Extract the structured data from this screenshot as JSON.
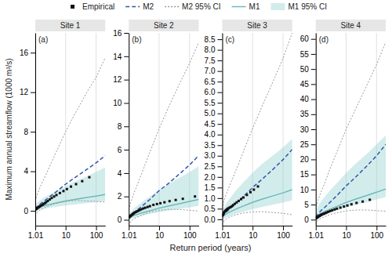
{
  "chart_data": [
    {
      "type": "line",
      "title": "Site 1",
      "annotation": "(a)",
      "xlabel": "Return period (years)",
      "ylabel": "Maximum annual streamflow (1000 m³/s)",
      "log": "x",
      "grid": "x",
      "x": [
        1.01,
        1.05,
        1.1,
        1.2,
        1.5,
        2,
        3,
        5,
        10,
        20,
        50,
        100,
        200
      ],
      "xlim": [
        1.01,
        200
      ],
      "xticks": [
        1.01,
        10,
        100
      ],
      "ylim": [
        -1.5,
        18
      ],
      "yticks": [
        0,
        4,
        8,
        12,
        16
      ],
      "series": [
        {
          "type": "scatter",
          "marker": "square",
          "color": "#111111",
          "x": [
            1.05,
            1.1,
            1.15,
            1.2,
            1.28,
            1.35,
            1.42,
            1.5,
            1.6,
            1.75,
            1.9,
            2.1,
            2.3,
            2.6,
            3.0,
            3.5,
            4.2,
            5.0,
            6.5,
            8.5,
            11.0,
            15.0,
            22.0,
            35.0,
            60.0
          ],
          "values": [
            0.15,
            0.2,
            0.25,
            0.3,
            0.35,
            0.4,
            0.45,
            0.5,
            0.55,
            0.62,
            0.7,
            0.78,
            0.88,
            1.0,
            1.15,
            1.3,
            1.45,
            1.6,
            1.8,
            2.0,
            2.2,
            2.45,
            2.7,
            3.0,
            3.4
          ]
        },
        {
          "type": "line",
          "line_style": "dashed",
          "color": "#3355aa",
          "values": [
            0.2,
            0.27,
            0.34,
            0.46,
            0.72,
            1.0,
            1.42,
            1.95,
            2.7,
            3.35,
            4.2,
            4.85,
            5.6
          ]
        },
        {
          "type": "line",
          "line_style": "dotted",
          "color": "#999999",
          "lower": [
            -0.5,
            -0.38,
            -0.28,
            -0.12,
            0.1,
            0.3,
            0.55,
            0.78,
            0.95,
            1.05,
            1.0,
            0.95,
            0.88
          ],
          "upper": [
            1.0,
            1.2,
            1.4,
            1.75,
            2.5,
            3.3,
            4.5,
            6.0,
            8.0,
            9.8,
            12.0,
            13.5,
            15.5
          ]
        },
        {
          "type": "line",
          "line_style": "solid",
          "color": "#6bbaba",
          "values": [
            0.18,
            0.22,
            0.25,
            0.3,
            0.42,
            0.52,
            0.65,
            0.8,
            1.0,
            1.15,
            1.35,
            1.5,
            1.65
          ]
        },
        {
          "type": "area",
          "color": "#8ecfcf",
          "lower": [
            -0.1,
            -0.05,
            0.0,
            0.05,
            0.12,
            0.2,
            0.3,
            0.42,
            0.55,
            0.65,
            0.78,
            0.88,
            1.0
          ],
          "upper": [
            0.5,
            0.6,
            0.7,
            0.85,
            1.1,
            1.35,
            1.65,
            2.0,
            2.5,
            2.95,
            3.5,
            3.95,
            4.4
          ]
        }
      ]
    },
    {
      "type": "line",
      "title": "Site 2",
      "annotation": "(b)",
      "log": "x",
      "grid": "x",
      "x": [
        1.01,
        1.05,
        1.1,
        1.2,
        1.5,
        2,
        3,
        5,
        10,
        20,
        50,
        100,
        200
      ],
      "xlim": [
        1.01,
        200
      ],
      "xticks": [
        1.01,
        10,
        100
      ],
      "ylim": [
        -0.5,
        16
      ],
      "yticks": [
        0,
        2,
        4,
        6,
        8,
        10,
        12,
        14,
        16
      ],
      "series": [
        {
          "type": "scatter",
          "marker": "square",
          "color": "#111111",
          "x": [
            1.05,
            1.1,
            1.15,
            1.2,
            1.28,
            1.35,
            1.42,
            1.5,
            1.6,
            1.75,
            1.9,
            2.1,
            2.3,
            2.6,
            3.0,
            3.5,
            4.2,
            5.0,
            6.5,
            8.5,
            11.0,
            15.0,
            22.0,
            35.0,
            60.0,
            150.0
          ],
          "values": [
            0.22,
            0.28,
            0.33,
            0.38,
            0.43,
            0.48,
            0.53,
            0.58,
            0.63,
            0.68,
            0.73,
            0.78,
            0.84,
            0.9,
            0.97,
            1.03,
            1.1,
            1.17,
            1.28,
            1.35,
            1.42,
            1.5,
            1.6,
            1.7,
            1.8,
            2.0
          ]
        },
        {
          "type": "line",
          "line_style": "dashed",
          "color": "#3355aa",
          "values": [
            0.15,
            0.2,
            0.28,
            0.38,
            0.62,
            0.88,
            1.25,
            1.75,
            2.5,
            3.1,
            4.0,
            4.7,
            5.5
          ]
        },
        {
          "type": "line",
          "line_style": "dotted",
          "color": "#999999",
          "lower": [
            -0.5,
            -0.38,
            -0.28,
            -0.12,
            0.08,
            0.25,
            0.45,
            0.65,
            0.82,
            0.9,
            0.88,
            0.82,
            0.75
          ],
          "upper": [
            0.85,
            1.05,
            1.28,
            1.6,
            2.3,
            3.1,
            4.3,
            5.8,
            7.8,
            9.6,
            11.8,
            13.4,
            15.2
          ]
        },
        {
          "type": "line",
          "line_style": "solid",
          "color": "#6bbaba",
          "values": [
            0.15,
            0.18,
            0.22,
            0.27,
            0.38,
            0.48,
            0.62,
            0.78,
            1.0,
            1.18,
            1.4,
            1.58,
            1.75
          ]
        },
        {
          "type": "area",
          "color": "#8ecfcf",
          "lower": [
            -0.05,
            -0.02,
            0.02,
            0.07,
            0.16,
            0.25,
            0.36,
            0.5,
            0.65,
            0.78,
            0.94,
            1.06,
            1.2
          ],
          "upper": [
            0.38,
            0.48,
            0.58,
            0.72,
            0.98,
            1.25,
            1.6,
            2.0,
            2.55,
            3.05,
            3.65,
            4.1,
            4.6
          ]
        }
      ]
    },
    {
      "type": "line",
      "title": "Site 3",
      "annotation": "(c)",
      "log": "x",
      "grid": "x",
      "x": [
        1.01,
        1.05,
        1.1,
        1.2,
        1.5,
        2,
        3,
        5,
        10,
        20,
        50,
        100,
        200
      ],
      "xlim": [
        1.01,
        200
      ],
      "xticks": [
        1.01,
        10,
        100
      ],
      "ylim": [
        -0.3,
        8.8
      ],
      "yticks": [
        {
          "value": 0.0,
          "label": "0.0"
        },
        0.5,
        {
          "value": 1.0,
          "label": "1.0"
        },
        1.5,
        {
          "value": 2.0,
          "label": "2.0"
        },
        2.5,
        {
          "value": 3.0,
          "label": "3.0"
        },
        3.5,
        {
          "value": 4.0,
          "label": "4.0"
        },
        4.5,
        {
          "value": 5.0,
          "label": "5.0"
        },
        5.5,
        {
          "value": 6.0,
          "label": "6.0"
        },
        6.5,
        {
          "value": 7.0,
          "label": "7.0"
        },
        7.5,
        {
          "value": 8.0,
          "label": "8.0"
        },
        8.5
      ],
      "series": [
        {
          "type": "scatter",
          "marker": "square",
          "color": "#111111",
          "x": [
            1.05,
            1.1,
            1.15,
            1.2,
            1.28,
            1.35,
            1.42,
            1.5,
            1.6,
            1.75,
            1.9,
            2.1,
            2.3,
            2.6,
            3.0,
            3.5,
            4.2,
            5.0,
            6.5,
            8.5,
            11.0,
            15.0
          ],
          "values": [
            0.2,
            0.26,
            0.31,
            0.36,
            0.4,
            0.43,
            0.46,
            0.49,
            0.52,
            0.55,
            0.58,
            0.62,
            0.67,
            0.73,
            0.8,
            0.87,
            0.95,
            1.03,
            1.15,
            1.28,
            1.4,
            1.55
          ]
        },
        {
          "type": "line",
          "line_style": "dashed",
          "color": "#3355aa",
          "values": [
            0.1,
            0.14,
            0.18,
            0.25,
            0.4,
            0.56,
            0.78,
            1.08,
            1.5,
            1.88,
            2.4,
            2.82,
            3.3
          ]
        },
        {
          "type": "line",
          "line_style": "dotted",
          "color": "#999999",
          "lower": [
            -0.25,
            -0.18,
            -0.12,
            -0.04,
            0.06,
            0.14,
            0.22,
            0.3,
            0.35,
            0.36,
            0.32,
            0.28,
            0.22
          ],
          "upper": [
            0.5,
            0.62,
            0.76,
            0.96,
            1.35,
            1.78,
            2.4,
            3.2,
            4.3,
            5.3,
            6.6,
            7.6,
            8.8
          ]
        },
        {
          "type": "line",
          "line_style": "solid",
          "color": "#6bbaba",
          "values": [
            0.1,
            0.13,
            0.16,
            0.2,
            0.3,
            0.38,
            0.5,
            0.63,
            0.8,
            0.95,
            1.12,
            1.25,
            1.4
          ]
        },
        {
          "type": "area",
          "color": "#8ecfcf",
          "lower": [
            -0.05,
            -0.02,
            0.01,
            0.05,
            0.12,
            0.18,
            0.27,
            0.36,
            0.48,
            0.58,
            0.7,
            0.79,
            0.9
          ],
          "upper": [
            0.3,
            0.38,
            0.48,
            0.6,
            0.85,
            1.08,
            1.4,
            1.75,
            2.2,
            2.6,
            3.05,
            3.4,
            3.8
          ]
        }
      ]
    },
    {
      "type": "line",
      "title": "Site 4",
      "annotation": "(d)",
      "log": "x",
      "grid": "x",
      "legend": "top",
      "x": [
        1.01,
        1.05,
        1.1,
        1.2,
        1.5,
        2,
        3,
        5,
        10,
        20,
        50,
        100,
        200
      ],
      "xlim": [
        1.01,
        200
      ],
      "xticks": [
        1.01,
        10,
        100
      ],
      "ylim": [
        -2,
        62
      ],
      "yticks": [
        0,
        5,
        10,
        15,
        20,
        25,
        30,
        35,
        40,
        45,
        50,
        55,
        60
      ],
      "series": [
        {
          "name": "Empirical",
          "type": "scatter",
          "marker": "square",
          "color": "#111111",
          "x": [
            1.05,
            1.1,
            1.15,
            1.2,
            1.28,
            1.35,
            1.42,
            1.5,
            1.6,
            1.75,
            1.9,
            2.1,
            2.3,
            2.6,
            3.0,
            3.5,
            4.2,
            5.0,
            6.5,
            8.5,
            11.0,
            15.0,
            22.0,
            35.0,
            60.0
          ],
          "values": [
            0.5,
            0.65,
            0.8,
            0.95,
            1.1,
            1.25,
            1.4,
            1.55,
            1.7,
            1.85,
            2.0,
            2.18,
            2.38,
            2.6,
            2.85,
            3.1,
            3.38,
            3.65,
            4.0,
            4.35,
            4.7,
            5.1,
            5.55,
            6.0,
            6.6
          ]
        },
        {
          "name": "M2",
          "type": "line",
          "line_style": "dashed",
          "color": "#3355aa",
          "values": [
            0.8,
            1.1,
            1.4,
            1.9,
            3.0,
            4.1,
            5.8,
            8.0,
            11.2,
            14.0,
            18.0,
            21.2,
            25.0
          ]
        },
        {
          "name": "M2 95% CI",
          "type": "line",
          "line_style": "dotted",
          "color": "#999999",
          "lower": [
            -1.5,
            -1.1,
            -0.7,
            -0.2,
            0.5,
            1.0,
            1.7,
            2.3,
            2.9,
            3.2,
            3.2,
            3.0,
            2.8
          ],
          "upper": [
            3.2,
            4.1,
            5.0,
            6.5,
            9.2,
            12.2,
            17.0,
            22.5,
            30.0,
            36.5,
            45.0,
            51.5,
            59.0
          ]
        },
        {
          "name": "M1",
          "type": "line",
          "line_style": "solid",
          "color": "#6bbaba",
          "values": [
            0.8,
            1.0,
            1.2,
            1.5,
            2.1,
            2.7,
            3.5,
            4.4,
            5.7,
            6.8,
            8.1,
            9.1,
            10.2
          ]
        },
        {
          "name": "M1 95% CI",
          "type": "area",
          "color": "#8ecfcf",
          "lower": [
            -0.5,
            -0.1,
            0.2,
            0.6,
            1.2,
            1.7,
            2.4,
            3.1,
            4.0,
            4.9,
            5.9,
            6.7,
            7.5
          ],
          "upper": [
            2.2,
            2.85,
            3.5,
            4.4,
            6.0,
            7.6,
            9.8,
            12.2,
            15.5,
            18.5,
            22.0,
            25.0,
            28.0
          ]
        }
      ]
    }
  ]
}
